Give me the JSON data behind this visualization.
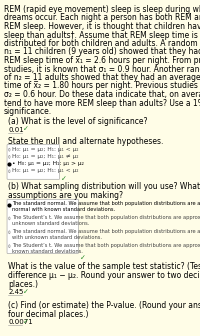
{
  "bg_color": "#fffde7",
  "text_color": "#000000",
  "red_color": "#cc0000",
  "green_color": "#228822",
  "paragraph_lines": [
    "REM (rapid eye movement) sleep is sleep during which most",
    "dreams occur. Each night a person has both REM and non-",
    "REM sleep. However, it is thought that children have more REM",
    "sleep than adults†. Assume that REM sleep time is normally",
    "distributed for both children and adults. A random sample of",
    "n₁ = 11 children (9 years old) showed that they had an average",
    "REM sleep time of x̅₁ = 2.6 hours per night. From previous",
    "studies, it is known that σ₁ = 0.9 hour. Another random sample",
    "of n₂ = 11 adults showed that they had an average REM sleep",
    "time of x̅₂ = 1.80 hours per night. Previous studies show that",
    "σ₂ = 0.6 hour. Do these data indicate that, on average, children",
    "tend to have more REM sleep than adults? Use a 1% level of",
    "significance."
  ],
  "qa_label": "(a) What is the level of significance?",
  "sig_answer": "0.01",
  "hyp_label": "State the null and alternate hypotheses.",
  "hyp_options": [
    "H₀: μ₁ = μ₂; H₁: μ₁ < μ₂",
    "H₀: μ₁ = μ₂; H₁: μ₁ ≠ μ₂",
    "• H₀: μ₁ = μ₂; H₁: μ₁ > μ₂",
    "H₀: μ₁ = μ₂; H₁: μ₁ < μ₂"
  ],
  "hyp_selected": 2,
  "qb_label1": "(b) What sampling distribution will you use? What",
  "qb_label2": "assumptions are you making?",
  "dist_options": [
    "The standard normal. We assume that both population distributions are approximately normal with known standard deviations.",
    "The Student’s t. We assume that both population distributions are approximately normal with unknown standard deviations.",
    "The standard normal. We assume that both population distributions are approximately normal with unknown standard deviations.",
    "The Student’s t. We assume that both population distributions are approximately normal with known standard deviations."
  ],
  "dist_selected": 0,
  "stat_label1": "What is the value of the sample test statistic? (Test the",
  "stat_label2": "difference μ₁ − μ₂. Round your answer to two decimal",
  "stat_label3": "places.)",
  "stat_answer": "2.45",
  "qc_label1": "(c) Find (or estimate) the P-value. (Round your answer to",
  "qc_label2": "four decimal places.)",
  "pval_answer": "0.0071",
  "box1_color": "#ccddcc",
  "box2_color": "#ccddcc"
}
